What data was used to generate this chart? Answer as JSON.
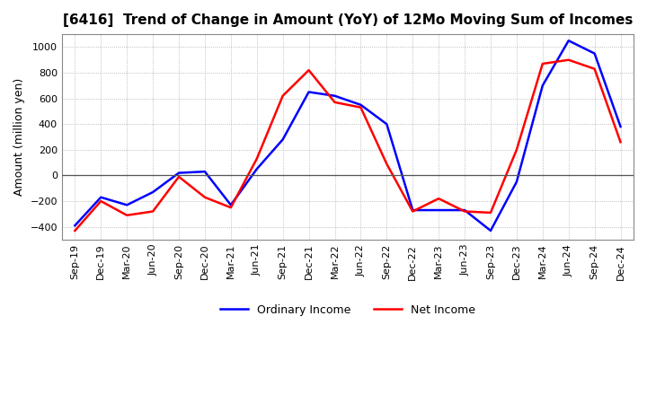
{
  "title": "[6416]  Trend of Change in Amount (YoY) of 12Mo Moving Sum of Incomes",
  "ylabel": "Amount (million yen)",
  "ylim": [
    -500,
    1100
  ],
  "yticks": [
    -400,
    -200,
    0,
    200,
    400,
    600,
    800,
    1000
  ],
  "x_labels": [
    "Sep-19",
    "Dec-19",
    "Mar-20",
    "Jun-20",
    "Sep-20",
    "Dec-20",
    "Mar-21",
    "Jun-21",
    "Sep-21",
    "Dec-21",
    "Mar-22",
    "Jun-22",
    "Sep-22",
    "Dec-22",
    "Mar-23",
    "Jun-23",
    "Sep-23",
    "Dec-23",
    "Mar-24",
    "Jun-24",
    "Sep-24",
    "Dec-24"
  ],
  "ordinary_income": [
    -390,
    -170,
    -230,
    -130,
    20,
    30,
    -230,
    50,
    280,
    650,
    620,
    550,
    400,
    -270,
    -270,
    -270,
    -430,
    -50,
    700,
    1050,
    950,
    380
  ],
  "net_income": [
    -430,
    -200,
    -310,
    -280,
    -10,
    -170,
    -250,
    130,
    620,
    820,
    570,
    530,
    90,
    -280,
    -180,
    -280,
    -290,
    200,
    870,
    900,
    830,
    260
  ],
  "ordinary_color": "#0000ff",
  "net_color": "#ff0000",
  "grid_color": "#aaaaaa",
  "plot_bg_color": "#ffffff",
  "fig_bg_color": "#ffffff",
  "title_fontsize": 11,
  "axis_fontsize": 9,
  "tick_fontsize": 8,
  "legend_fontsize": 9,
  "line_width": 1.8
}
